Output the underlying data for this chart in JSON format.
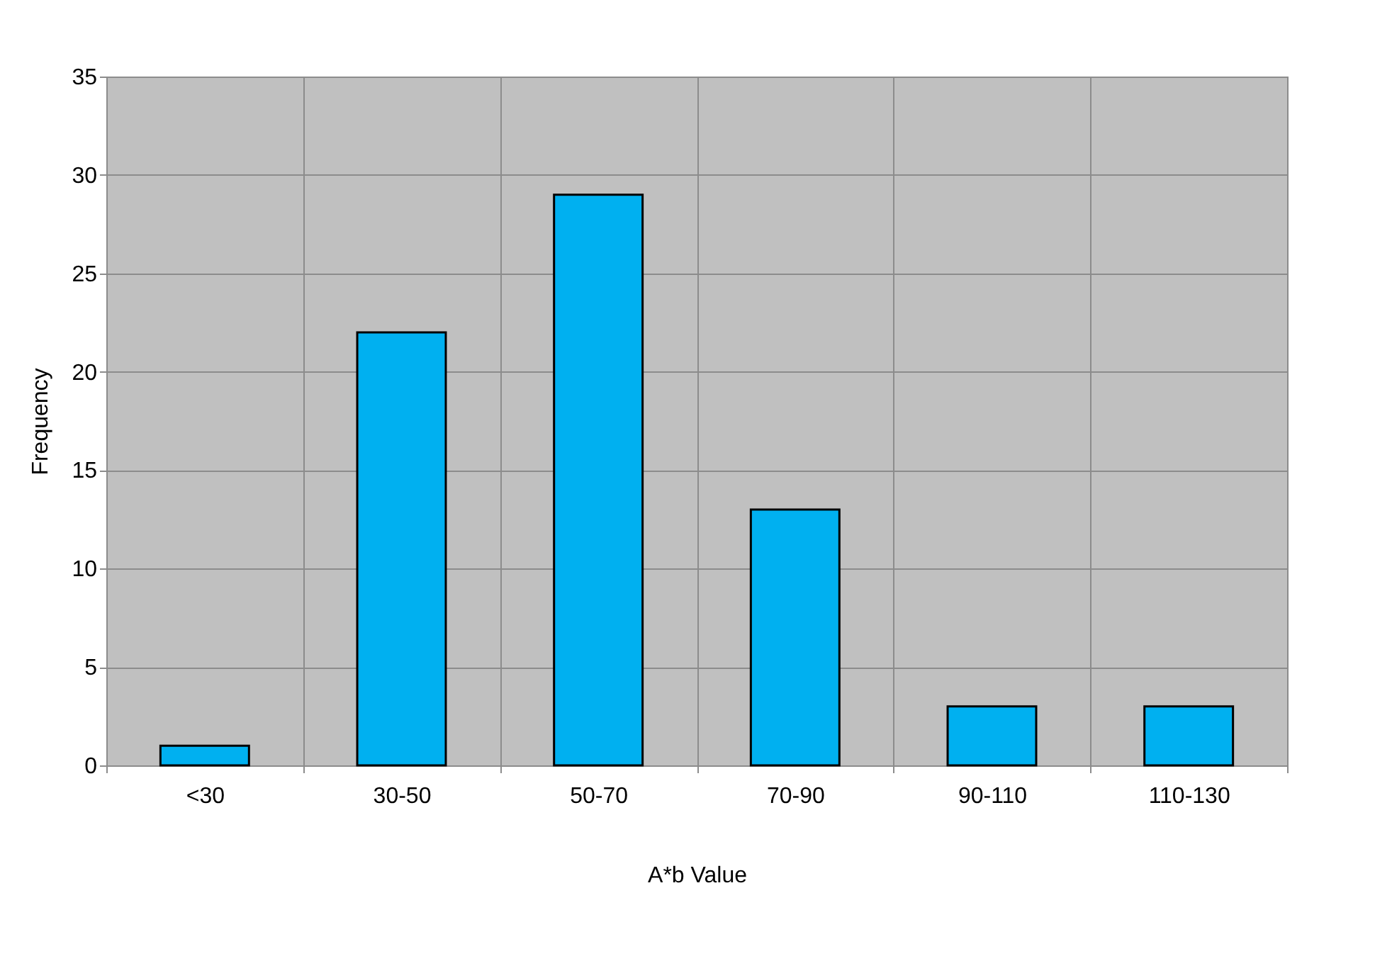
{
  "chart_data": {
    "type": "bar",
    "categories": [
      "<30",
      "30-50",
      "50-70",
      "70-90",
      "90-110",
      "110-130"
    ],
    "values": [
      1,
      22,
      29,
      13,
      3,
      3
    ],
    "color": "#00b0f0",
    "xlabel": "A*b Value",
    "ylabel": "Frequency",
    "ylim": [
      0,
      35
    ],
    "yticks": [
      0,
      5,
      10,
      15,
      20,
      25,
      30,
      35
    ],
    "grid": true
  }
}
